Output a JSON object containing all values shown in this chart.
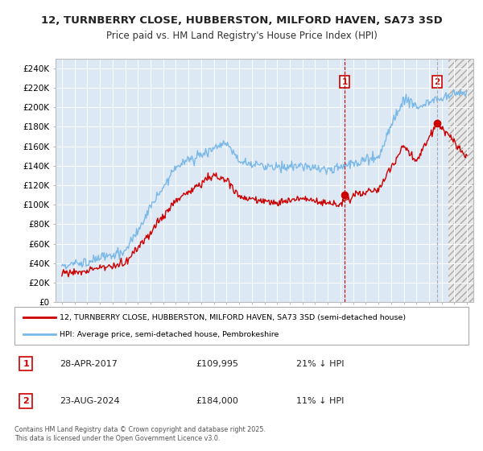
{
  "title": "12, TURNBERRY CLOSE, HUBBERSTON, MILFORD HAVEN, SA73 3SD",
  "subtitle": "Price paid vs. HM Land Registry's House Price Index (HPI)",
  "property_label": "12, TURNBERRY CLOSE, HUBBERSTON, MILFORD HAVEN, SA73 3SD (semi-detached house)",
  "hpi_label": "HPI: Average price, semi-detached house, Pembrokeshire",
  "annotation1_date": "28-APR-2017",
  "annotation1_price": "£109,995",
  "annotation1_hpi": "21% ↓ HPI",
  "annotation2_date": "23-AUG-2024",
  "annotation2_price": "£184,000",
  "annotation2_hpi": "11% ↓ HPI",
  "footer": "Contains HM Land Registry data © Crown copyright and database right 2025.\nThis data is licensed under the Open Government Licence v3.0.",
  "plot_bg": "#dce9f5",
  "fig_bg": "#ffffff",
  "hpi_color": "#7ab8e8",
  "price_color": "#cc0000",
  "vline_color": "#cc0000",
  "ylim": [
    0,
    250000
  ],
  "yticks": [
    0,
    20000,
    40000,
    60000,
    80000,
    100000,
    120000,
    140000,
    160000,
    180000,
    200000,
    220000,
    240000
  ],
  "sale1_year": 2017.33,
  "sale1_price": 109995,
  "sale2_year": 2024.65,
  "sale2_price": 184000,
  "hatch_start": 2025.5,
  "xmin": 1994.5,
  "xmax": 2027.5
}
